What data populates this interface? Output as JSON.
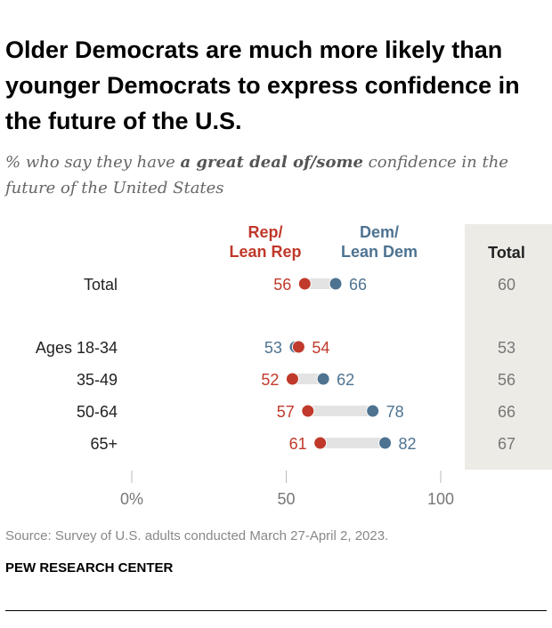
{
  "title": "Older Democrats are much more likely than younger Democrats to express confidence in the future of the U.S.",
  "subtitle": {
    "pre": "% who say they have ",
    "bold": "a great deal of/some",
    "post": " confidence in the future of the United States"
  },
  "source": "Source: Survey of U.S. adults conducted March 27-April 2, 2023.",
  "publisher": "PEW RESEARCH CENTER",
  "chart_data": {
    "type": "dot",
    "categories": [
      "Total",
      "Ages 18-34",
      "35-49",
      "50-64",
      "65+"
    ],
    "series": [
      {
        "name": "Rep/ Lean Rep",
        "label_lines": [
          "Rep/",
          "Lean Rep"
        ],
        "color": "#c0392b",
        "values": [
          56,
          54,
          52,
          57,
          61
        ]
      },
      {
        "name": "Dem/ Lean Dem",
        "label_lines": [
          "Dem/",
          "Lean Dem"
        ],
        "color": "#4e7391",
        "values": [
          66,
          53,
          62,
          78,
          82
        ]
      }
    ],
    "total": {
      "label": "Total",
      "values": [
        60,
        53,
        56,
        66,
        67
      ]
    },
    "xlim": [
      0,
      100
    ],
    "xticks": [
      "0%",
      "50",
      "100"
    ],
    "xtick_values": [
      0,
      50,
      100
    ]
  }
}
